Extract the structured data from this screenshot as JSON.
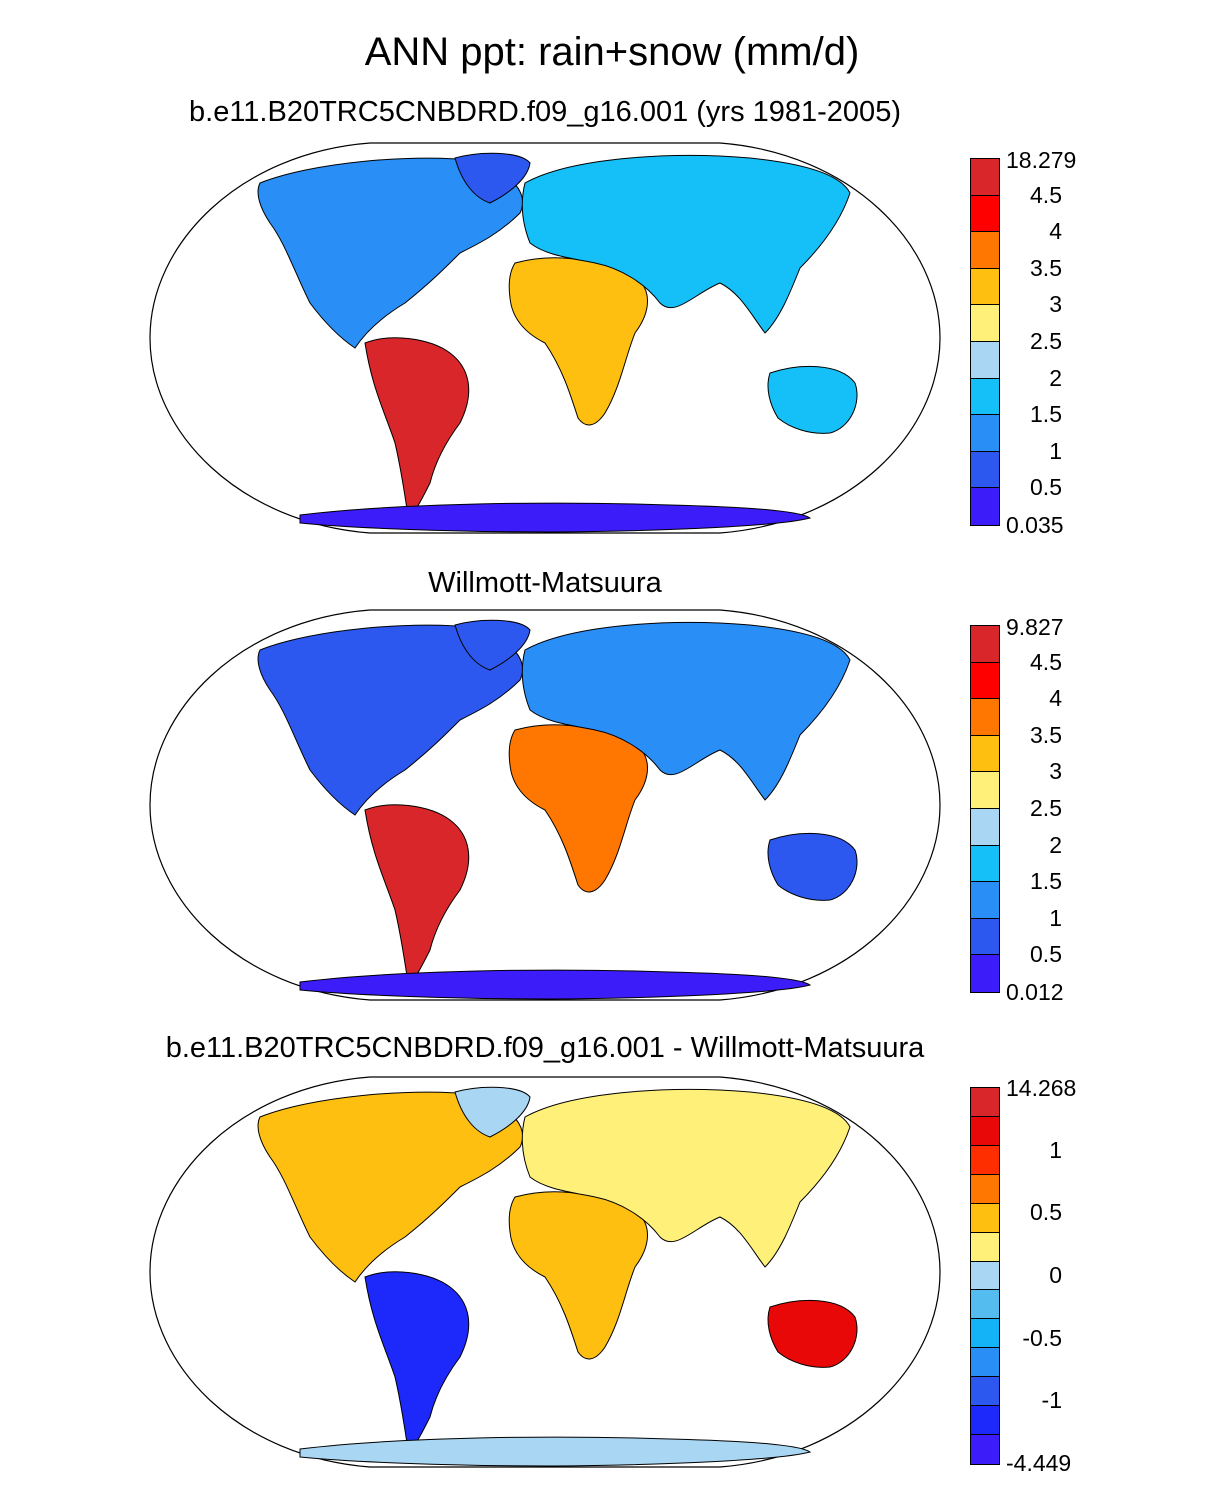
{
  "title": "ANN ppt: rain+snow (mm/d)",
  "panels": [
    {
      "title": "b.e11.B20TRC5CNBDRD.f09_g16.001 (yrs 1981-2005)",
      "colorbar": {
        "max_label": "18.279",
        "min_label": "0.035",
        "levels": [
          "4.5",
          "4",
          "3.5",
          "3",
          "2.5",
          "2",
          "1.5",
          "1",
          "0.5"
        ],
        "colors": [
          "#d8262a",
          "#ff0000",
          "#ff7700",
          "#ffbf10",
          "#fff07a",
          "#a9d6f3",
          "#14c0f7",
          "#2a8ef7",
          "#2d58ef",
          "#3c1cf9"
        ]
      }
    },
    {
      "title": "Willmott-Matsuura",
      "colorbar": {
        "max_label": "9.827",
        "min_label": "0.012",
        "levels": [
          "4.5",
          "4",
          "3.5",
          "3",
          "2.5",
          "2",
          "1.5",
          "1",
          "0.5"
        ],
        "colors": [
          "#d8262a",
          "#ff0000",
          "#ff7700",
          "#ffbf10",
          "#fff07a",
          "#a9d6f3",
          "#14c0f7",
          "#2a8ef7",
          "#2d58ef",
          "#3c1cf9"
        ]
      }
    },
    {
      "title": "b.e11.B20TRC5CNBDRD.f09_g16.001 - Willmott-Matsuura",
      "colorbar": {
        "max_label": "14.268",
        "min_label": "-4.449",
        "levels": [
          "1",
          "0.5",
          "0",
          "-0.5",
          "-1"
        ],
        "colors": [
          "#d8262a",
          "#e80808",
          "#ff2e00",
          "#ff7700",
          "#ffbf10",
          "#fff07a",
          "#a9d6f3",
          "#55bcf0",
          "#14b2f7",
          "#2a8ef7",
          "#2d58ef",
          "#1d29fa",
          "#3c1cf9"
        ]
      }
    }
  ]
}
